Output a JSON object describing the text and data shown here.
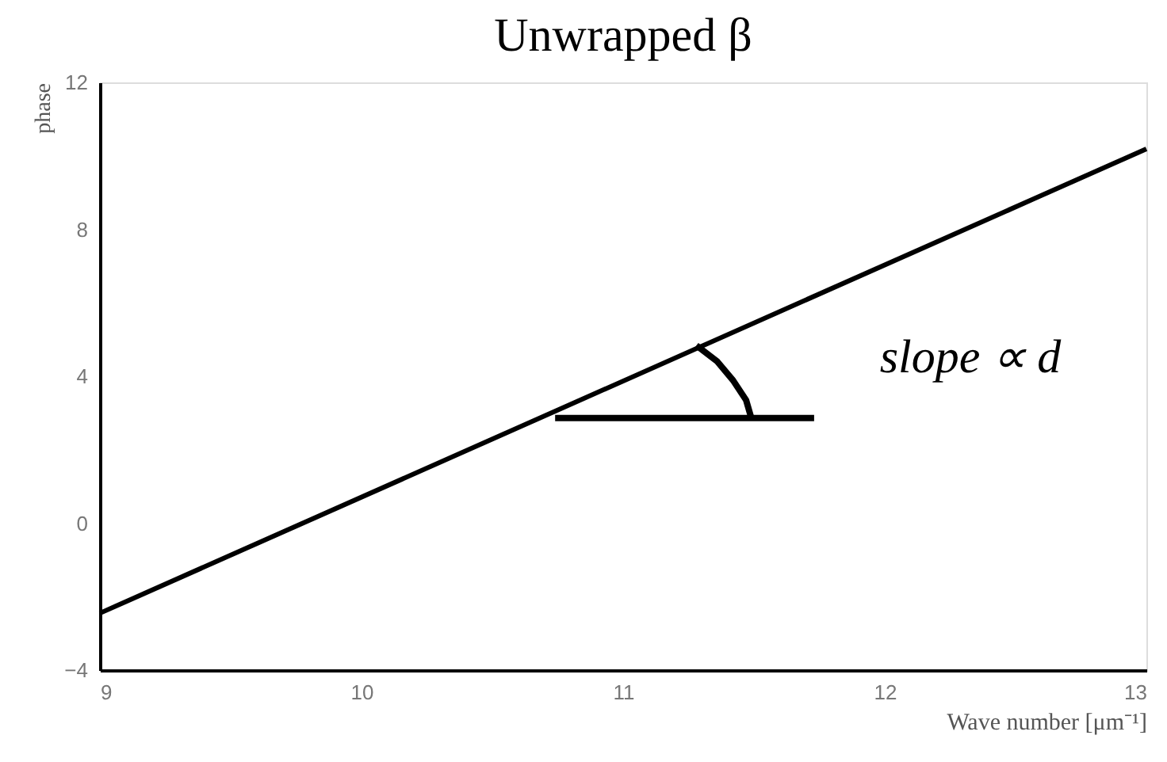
{
  "chart_data": {
    "type": "line",
    "title": "Unwrapped β",
    "xlabel": "Wave number [μm⁻¹]",
    "ylabel": "phase",
    "xlim": [
      9,
      13
    ],
    "xticks": [
      9,
      10,
      11,
      12,
      13
    ],
    "ylim": [
      -4,
      12
    ],
    "yticks": [
      -4,
      0,
      4,
      8,
      12
    ],
    "grid": false,
    "marker": "none",
    "line_style": "solid",
    "series": [
      {
        "x": [
          9,
          13
        ],
        "values": [
          -2.45,
          10.19
        ],
        "color": "#000000"
      },
      {
        "x": [
          10.74,
          11.73
        ],
        "values": [
          2.86,
          2.86
        ],
        "color": "#000000"
      },
      {
        "x": [
          11.28,
          11.36,
          11.42,
          11.47,
          11.49
        ],
        "values": [
          4.84,
          4.4,
          3.89,
          3.35,
          2.86
        ],
        "color": "#000000"
      }
    ],
    "annotations": [
      "slope ∝ d"
    ]
  }
}
